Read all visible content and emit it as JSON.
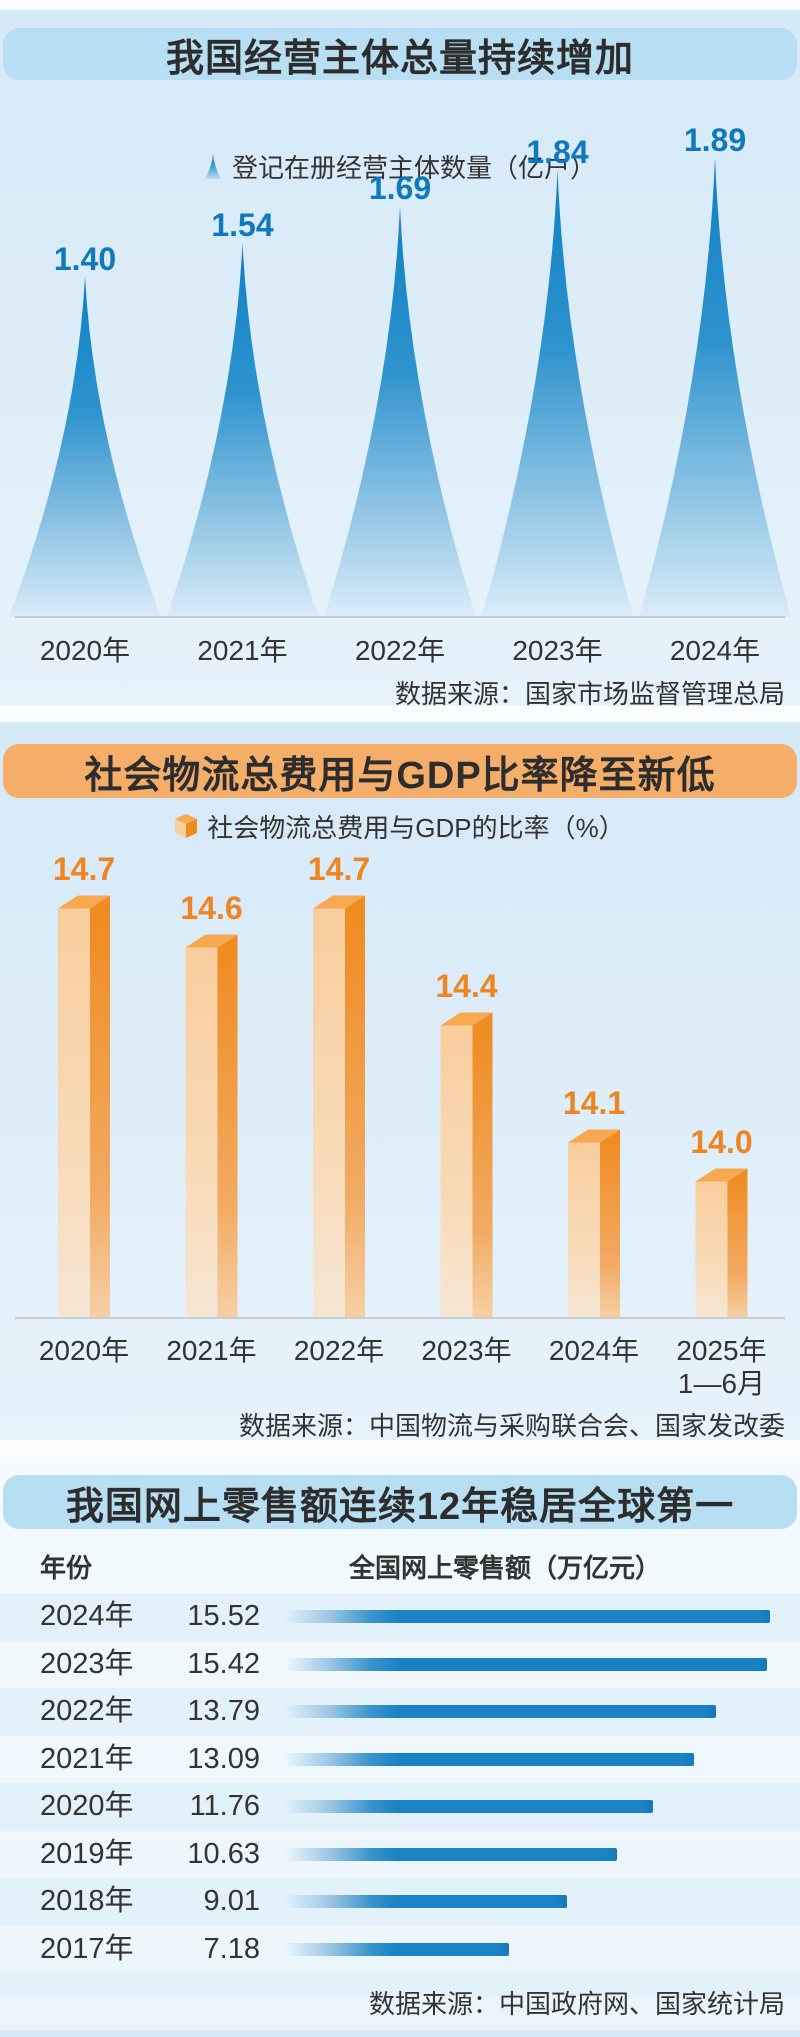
{
  "chart_data": [
    {
      "id": "business-entities",
      "type": "area",
      "panel_title": "我国经营主体总量持续增加",
      "legend": "登记在册经营主体数量（亿户）",
      "categories": [
        "2020年",
        "2021年",
        "2022年",
        "2023年",
        "2024年"
      ],
      "values": [
        1.4,
        1.54,
        1.69,
        1.84,
        1.89
      ],
      "labels": [
        "1.40",
        "1.54",
        "1.69",
        "1.84",
        "1.89"
      ],
      "ylim": [
        0,
        1.96
      ],
      "grid": false,
      "legend_position": "top",
      "source": "数据来源：国家市场监督管理总局",
      "accent": "#0F78BE",
      "title_bar_color": "#B8DEF3",
      "shape_colors": {
        "top": "#0E81C5",
        "bottom": "#D9ECF8"
      }
    },
    {
      "id": "logistics-cost-gdp-ratio",
      "type": "bar",
      "panel_title": "社会物流总费用与GDP比率降至新低",
      "legend": "社会物流总费用与GDP的比率（%）",
      "categories": [
        "2020年",
        "2021年",
        "2022年",
        "2023年",
        "2024年",
        "2025年\n1—6月"
      ],
      "values": [
        14.7,
        14.6,
        14.7,
        14.4,
        14.1,
        14.0
      ],
      "labels": [
        "14.7",
        "14.6",
        "14.7",
        "14.4",
        "14.1",
        "14.0"
      ],
      "ylim": [
        13.65,
        14.85
      ],
      "grid": false,
      "legend_position": "top",
      "source": "数据来源：中国物流与采购联合会、国家发改委",
      "accent": "#EE8522",
      "title_bar_color": "#F5AE69",
      "shape_colors": {
        "front": "#F9CD9D",
        "side": "#EF8A1E",
        "top": "#F7A850"
      }
    },
    {
      "id": "online-retail",
      "type": "table",
      "panel_title": "我国网上零售额连续12年稳居全球第一",
      "columns": [
        "年份",
        "全国网上零售额（万亿元）"
      ],
      "categories": [
        "2024年",
        "2023年",
        "2022年",
        "2021年",
        "2020年",
        "2019年",
        "2018年",
        "2017年"
      ],
      "values": [
        15.52,
        15.42,
        13.79,
        13.09,
        11.76,
        10.63,
        9.01,
        7.18
      ],
      "labels": [
        "15.52",
        "15.42",
        "13.79",
        "13.09",
        "11.76",
        "10.63",
        "9.01",
        "7.18"
      ],
      "xlim": [
        0,
        15.52
      ],
      "grid": false,
      "source": "数据来源：中国政府网、国家统计局",
      "accent": "#1A83C5",
      "title_bar_color": "#B8DEF3"
    }
  ]
}
